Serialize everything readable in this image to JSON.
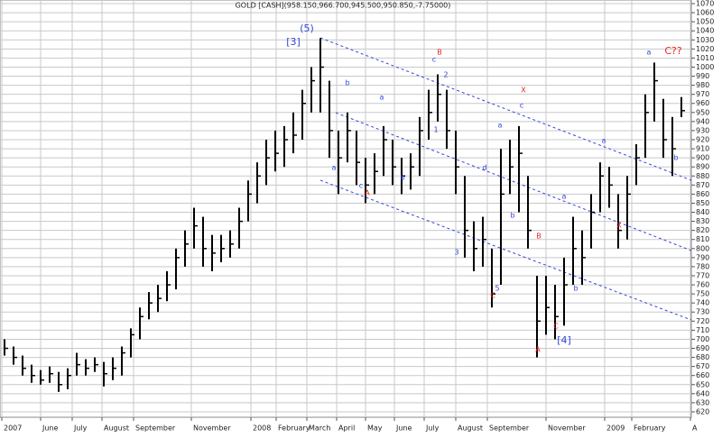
{
  "chart_data": {
    "type": "ohlc",
    "title": "GOLD [CASH](958.150,966.700,945.500,950.850,-7.75000)",
    "color": "#000000",
    "grid": true,
    "high": [
      700,
      692,
      682,
      672,
      666,
      670,
      664,
      668,
      685,
      678,
      680,
      675,
      680,
      692,
      712,
      735,
      752,
      760,
      775,
      800,
      820,
      845,
      835,
      815,
      815,
      820,
      845,
      875,
      895,
      920,
      930,
      935,
      950,
      975,
      1000,
      1032,
      985,
      930,
      950,
      930,
      900,
      905,
      935,
      920,
      900,
      905,
      945,
      975,
      992,
      975,
      930,
      880,
      830,
      835,
      800,
      910,
      920,
      935,
      880,
      770,
      770,
      760,
      790,
      835,
      820,
      860,
      895,
      890,
      860,
      880,
      915,
      970,
      1005,
      965,
      945,
      967
    ],
    "low": [
      682,
      672,
      660,
      652,
      650,
      652,
      642,
      645,
      660,
      660,
      664,
      648,
      655,
      660,
      680,
      700,
      722,
      730,
      742,
      755,
      780,
      800,
      780,
      775,
      785,
      790,
      800,
      830,
      850,
      870,
      885,
      890,
      905,
      920,
      950,
      950,
      900,
      860,
      895,
      870,
      850,
      860,
      880,
      870,
      860,
      865,
      880,
      920,
      940,
      910,
      860,
      790,
      775,
      780,
      735,
      760,
      860,
      840,
      800,
      680,
      705,
      700,
      715,
      760,
      760,
      800,
      840,
      845,
      800,
      810,
      870,
      900,
      940,
      900,
      880,
      945
    ],
    "close": [
      690,
      680,
      668,
      660,
      655,
      662,
      650,
      660,
      672,
      668,
      672,
      662,
      668,
      685,
      705,
      725,
      740,
      745,
      760,
      790,
      805,
      825,
      800,
      795,
      800,
      805,
      830,
      860,
      880,
      900,
      905,
      920,
      925,
      960,
      985,
      1000,
      930,
      900,
      930,
      895,
      870,
      885,
      920,
      890,
      880,
      890,
      930,
      950,
      970,
      930,
      890,
      820,
      800,
      810,
      750,
      860,
      890,
      905,
      820,
      720,
      735,
      725,
      760,
      800,
      790,
      840,
      880,
      870,
      820,
      860,
      900,
      950,
      985,
      920,
      910,
      952
    ],
    "xlim": [
      -0.5,
      76.1
    ],
    "ylim": [
      614,
      1074
    ],
    "xticks": [
      {
        "value": -0.3,
        "label": "2007"
      },
      {
        "value": 4,
        "label": "June"
      },
      {
        "value": 7.5,
        "label": "July"
      },
      {
        "value": 10.8,
        "label": "August"
      },
      {
        "value": 14.3,
        "label": "September"
      },
      {
        "value": 20.7,
        "label": "November"
      },
      {
        "value": 27.3,
        "label": "2008"
      },
      {
        "value": 30.1,
        "label": "February"
      },
      {
        "value": 33.5,
        "label": "March"
      },
      {
        "value": 36.8,
        "label": "April"
      },
      {
        "value": 40,
        "label": "May"
      },
      {
        "value": 43.2,
        "label": "June"
      },
      {
        "value": 46.5,
        "label": "July"
      },
      {
        "value": 50,
        "label": "August"
      },
      {
        "value": 53.5,
        "label": "September"
      },
      {
        "value": 60,
        "label": "November"
      },
      {
        "value": 66.5,
        "label": "2009"
      },
      {
        "value": 69.5,
        "label": "February"
      },
      {
        "value": 76,
        "label": "A"
      }
    ],
    "yticks": [
      620,
      630,
      640,
      650,
      660,
      670,
      680,
      690,
      700,
      710,
      720,
      730,
      740,
      750,
      760,
      770,
      780,
      790,
      800,
      810,
      820,
      830,
      840,
      850,
      860,
      870,
      880,
      890,
      900,
      910,
      920,
      930,
      940,
      950,
      960,
      970,
      980,
      990,
      1000,
      1010,
      1020,
      1030,
      1040,
      1050,
      1060,
      1070
    ],
    "annotations": [
      {
        "text": "(5)",
        "color": "#3344dd"
      },
      {
        "text": "[3]",
        "color": "#3344dd"
      },
      {
        "text": "B",
        "color": "#ee2222"
      },
      {
        "text": "c",
        "color": "#3344dd"
      },
      {
        "text": "2",
        "color": "#3344dd"
      },
      {
        "text": "b",
        "color": "#3344dd"
      },
      {
        "text": "a",
        "color": "#3344dd"
      },
      {
        "text": "X",
        "color": "#ee2222"
      },
      {
        "text": "c",
        "color": "#3344dd"
      },
      {
        "text": "1",
        "color": "#3344dd"
      },
      {
        "text": "a",
        "color": "#3344dd"
      },
      {
        "text": "a",
        "color": "#3344dd"
      },
      {
        "text": "a",
        "color": "#3344dd"
      },
      {
        "text": "C??",
        "color": "#ee2222"
      },
      {
        "text": "a",
        "color": "#3344dd"
      },
      {
        "text": "c",
        "color": "#3344dd"
      },
      {
        "text": "A",
        "color": "#ee2222"
      },
      {
        "text": "b",
        "color": "#3344dd"
      },
      {
        "text": "d",
        "color": "#3344dd"
      },
      {
        "text": "a",
        "color": "#3344dd"
      },
      {
        "text": "b",
        "color": "#3344dd"
      },
      {
        "text": "3",
        "color": "#3344dd"
      },
      {
        "text": "B",
        "color": "#ee2222"
      },
      {
        "text": "5",
        "color": "#3344dd"
      },
      {
        "text": "C",
        "color": "#ee2222"
      },
      {
        "text": "b",
        "color": "#3344dd"
      },
      {
        "text": "X",
        "color": "#ee2222"
      },
      {
        "text": "b",
        "color": "#3344dd"
      },
      {
        "text": "C",
        "color": "#ee2222"
      },
      {
        "text": "[4]",
        "color": "#3344dd"
      },
      {
        "text": "A",
        "color": "#ee2222"
      }
    ]
  }
}
